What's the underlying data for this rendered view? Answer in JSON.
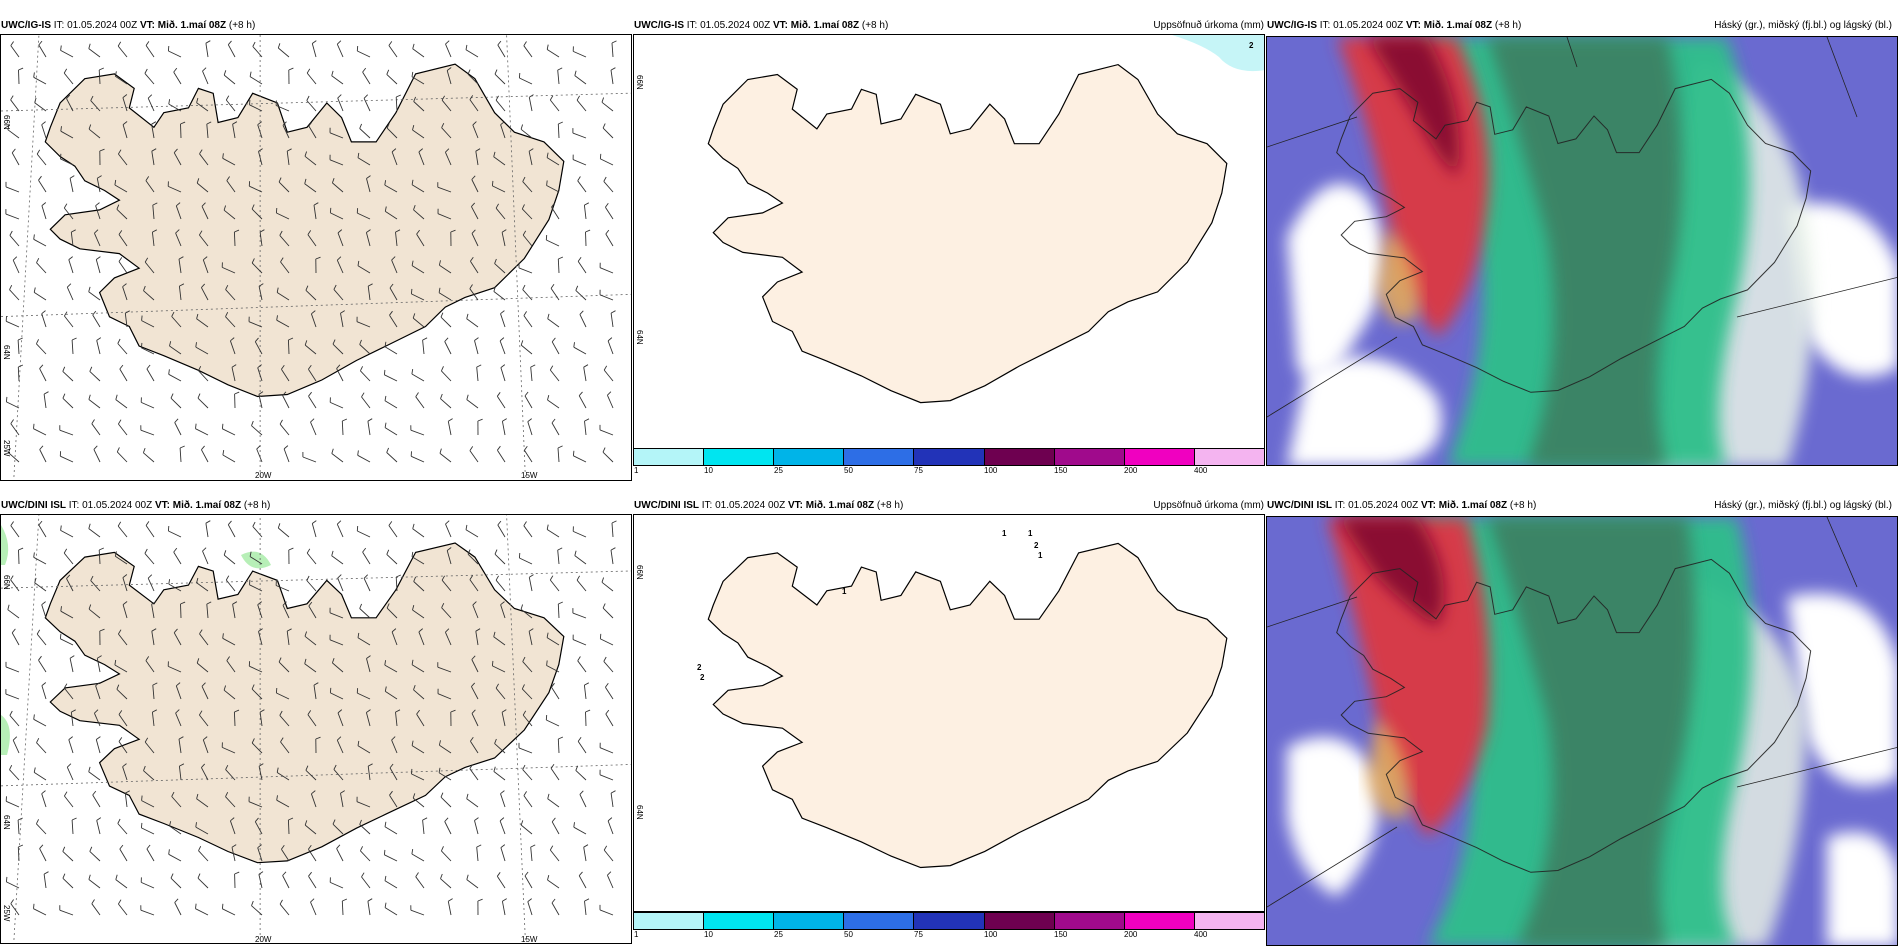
{
  "rows": [
    {
      "wind": {
        "model": "UWC/IG-IS",
        "it": "IT: 01.05.2024 00Z",
        "vt_label": "VT:",
        "vt": "Mið. 1.maí 08Z",
        "lead": "(+8 h)",
        "lat_labels": [
          "66N",
          "64N",
          "25W"
        ],
        "lon_labels": [
          "20W",
          "15W"
        ]
      },
      "precip": {
        "model": "UWC/IG-IS",
        "it": "IT: 01.05.2024 00Z",
        "vt_label": "VT:",
        "vt": "Mið. 1.maí 08Z",
        "lead": "(+8 h)",
        "field": "Uppsöfnuð úrkoma (mm)",
        "lat_labels": [
          "66N",
          "64N"
        ],
        "point_values": [
          "2"
        ]
      },
      "cloud": {
        "model": "UWC/IG-IS",
        "it": "IT: 01.05.2024 00Z",
        "vt_label": "VT:",
        "vt": "Mið. 1.maí 08Z",
        "lead": "(+8 h)",
        "field": "Háský (gr.), miðský (fj.bl.) og lágský (bl.)"
      }
    },
    {
      "wind": {
        "model": "UWC/DINI ISL",
        "it": "IT: 01.05.2024 00Z",
        "vt_label": "VT:",
        "vt": "Mið. 1.maí 08Z",
        "lead": "(+8 h)",
        "lat_labels": [
          "66N",
          "64N",
          "25W"
        ],
        "lon_labels": [
          "20W",
          "15W"
        ]
      },
      "precip": {
        "model": "UWC/DINI ISL",
        "it": "IT: 01.05.2024 00Z",
        "vt_label": "VT:",
        "vt": "Mið. 1.maí 08Z",
        "lead": "(+8 h)",
        "field": "Uppsöfnuð úrkoma (mm)",
        "lat_labels": [
          "66N",
          "64N"
        ],
        "point_values": [
          "1",
          "1",
          "2",
          "1",
          "1",
          "2",
          "2"
        ]
      },
      "cloud": {
        "model": "UWC/DINI ISL",
        "it": "IT: 01.05.2024 00Z",
        "vt_label": "VT:",
        "vt": "Mið. 1.maí 08Z",
        "lead": "(+8 h)",
        "field": "Háský (gr.), miðský (fj.bl.) og lágský (bl.)"
      }
    }
  ],
  "colorbar": {
    "ticks": [
      "1",
      "10",
      "25",
      "50",
      "75",
      "100",
      "150",
      "200",
      "400"
    ],
    "colors": [
      "#b4f5f8",
      "#00e5f0",
      "#00b4e8",
      "#2d6ee6",
      "#2233b8",
      "#6e0050",
      "#a00a8c",
      "#f000c0",
      "#f4b4f0"
    ]
  },
  "colors": {
    "land_wind": "#f1e4d3",
    "land_precip": "#fdf0e2",
    "cloud_high": "#6a6ad0",
    "cloud_mid": "#2fbf8a",
    "cloud_low": "#d63b4a"
  }
}
